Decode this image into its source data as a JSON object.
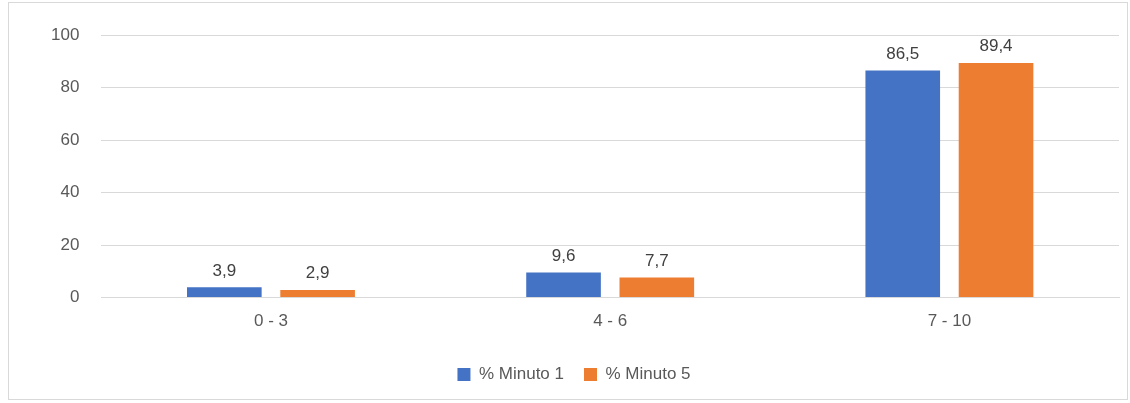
{
  "chart_data": {
    "type": "bar",
    "categories": [
      "0 - 3",
      "4 - 6",
      "7 - 10"
    ],
    "series": [
      {
        "name": "% Minuto 1",
        "color": "#4472c4",
        "values": [
          3.9,
          9.6,
          86.5
        ],
        "value_labels": [
          "3,9",
          "9,6",
          "86,5"
        ]
      },
      {
        "name": "% Minuto 5",
        "color": "#ed7d31",
        "values": [
          2.9,
          7.7,
          89.4
        ],
        "value_labels": [
          "2,9",
          "7,7",
          "89,4"
        ]
      }
    ],
    "ylim": [
      0,
      100
    ],
    "yticks": [
      0,
      20,
      40,
      60,
      80,
      100
    ],
    "grid": "y",
    "legend": "bottom"
  }
}
